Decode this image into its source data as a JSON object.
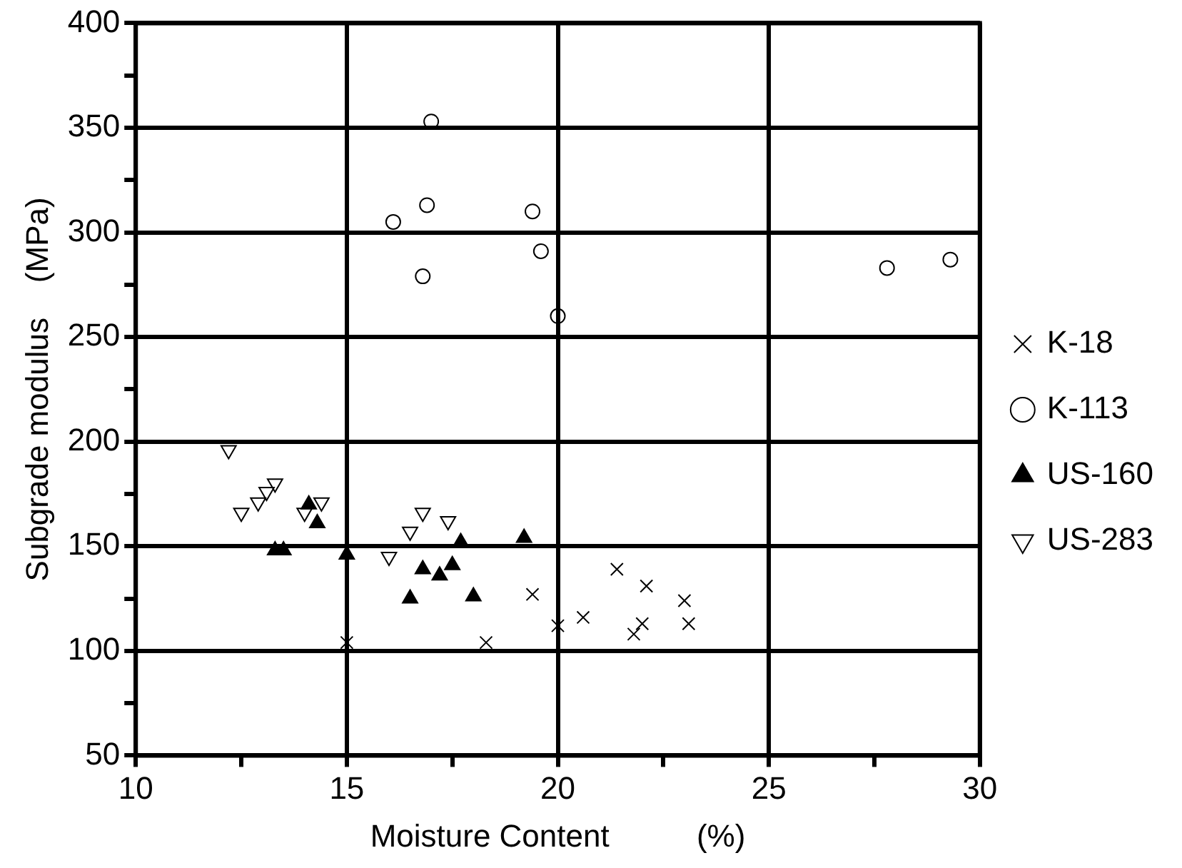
{
  "chart_data": {
    "type": "scatter",
    "xlabel": "Moisture Content          (%)",
    "ylabel": "Subgrade modulus    (MPa)",
    "xlim": [
      10,
      30
    ],
    "xticks": [
      10,
      {
        "value": 12.5,
        "label": null
      },
      15,
      {
        "value": 17.5,
        "label": null
      },
      20,
      {
        "value": 22.5,
        "label": null
      },
      25,
      {
        "value": 27.5,
        "label": null
      },
      30
    ],
    "ylim": [
      50,
      400
    ],
    "yticks": [
      50,
      {
        "value": 75,
        "label": null
      },
      100,
      {
        "value": 125,
        "label": null
      },
      150,
      {
        "value": 175,
        "label": null
      },
      200,
      {
        "value": 225,
        "label": null
      },
      250,
      {
        "value": 275,
        "label": null
      },
      300,
      {
        "value": 325,
        "label": null
      },
      350,
      {
        "value": 375,
        "label": null
      },
      400
    ],
    "grid": true,
    "legend": "right",
    "series": [
      {
        "name": "K-18",
        "color": "#000000",
        "marker": "cross",
        "x": [
          15.0,
          18.3,
          19.4,
          20.0,
          20.6,
          21.4,
          22.1,
          22.0,
          21.8,
          23.0,
          23.1
        ],
        "values": [
          104,
          104,
          127,
          112,
          116,
          139,
          131,
          113,
          108,
          124,
          113
        ]
      },
      {
        "name": "K-113",
        "color": "#000000",
        "marker": "circle",
        "x": [
          16.1,
          16.8,
          16.9,
          17.0,
          19.4,
          19.6,
          20.0,
          27.8,
          29.3
        ],
        "values": [
          305,
          279,
          313,
          353,
          310,
          291,
          260,
          283,
          287
        ]
      },
      {
        "name": "US-160",
        "color": "#000000",
        "marker": "triangle",
        "x": [
          13.3,
          13.5,
          14.1,
          14.3,
          15.0,
          16.5,
          16.8,
          17.2,
          17.5,
          17.7,
          18.0,
          19.2
        ],
        "values": [
          148,
          148,
          170,
          161,
          146,
          125,
          139,
          136,
          141,
          152,
          126,
          154
        ]
      },
      {
        "name": "US-283",
        "color": "#000000",
        "marker": "triangle-down",
        "x": [
          12.2,
          12.5,
          12.9,
          13.1,
          13.3,
          14.0,
          14.4,
          16.0,
          16.5,
          16.8,
          17.4
        ],
        "values": [
          196,
          166,
          171,
          176,
          180,
          166,
          171,
          145,
          157,
          166,
          162
        ]
      }
    ]
  }
}
